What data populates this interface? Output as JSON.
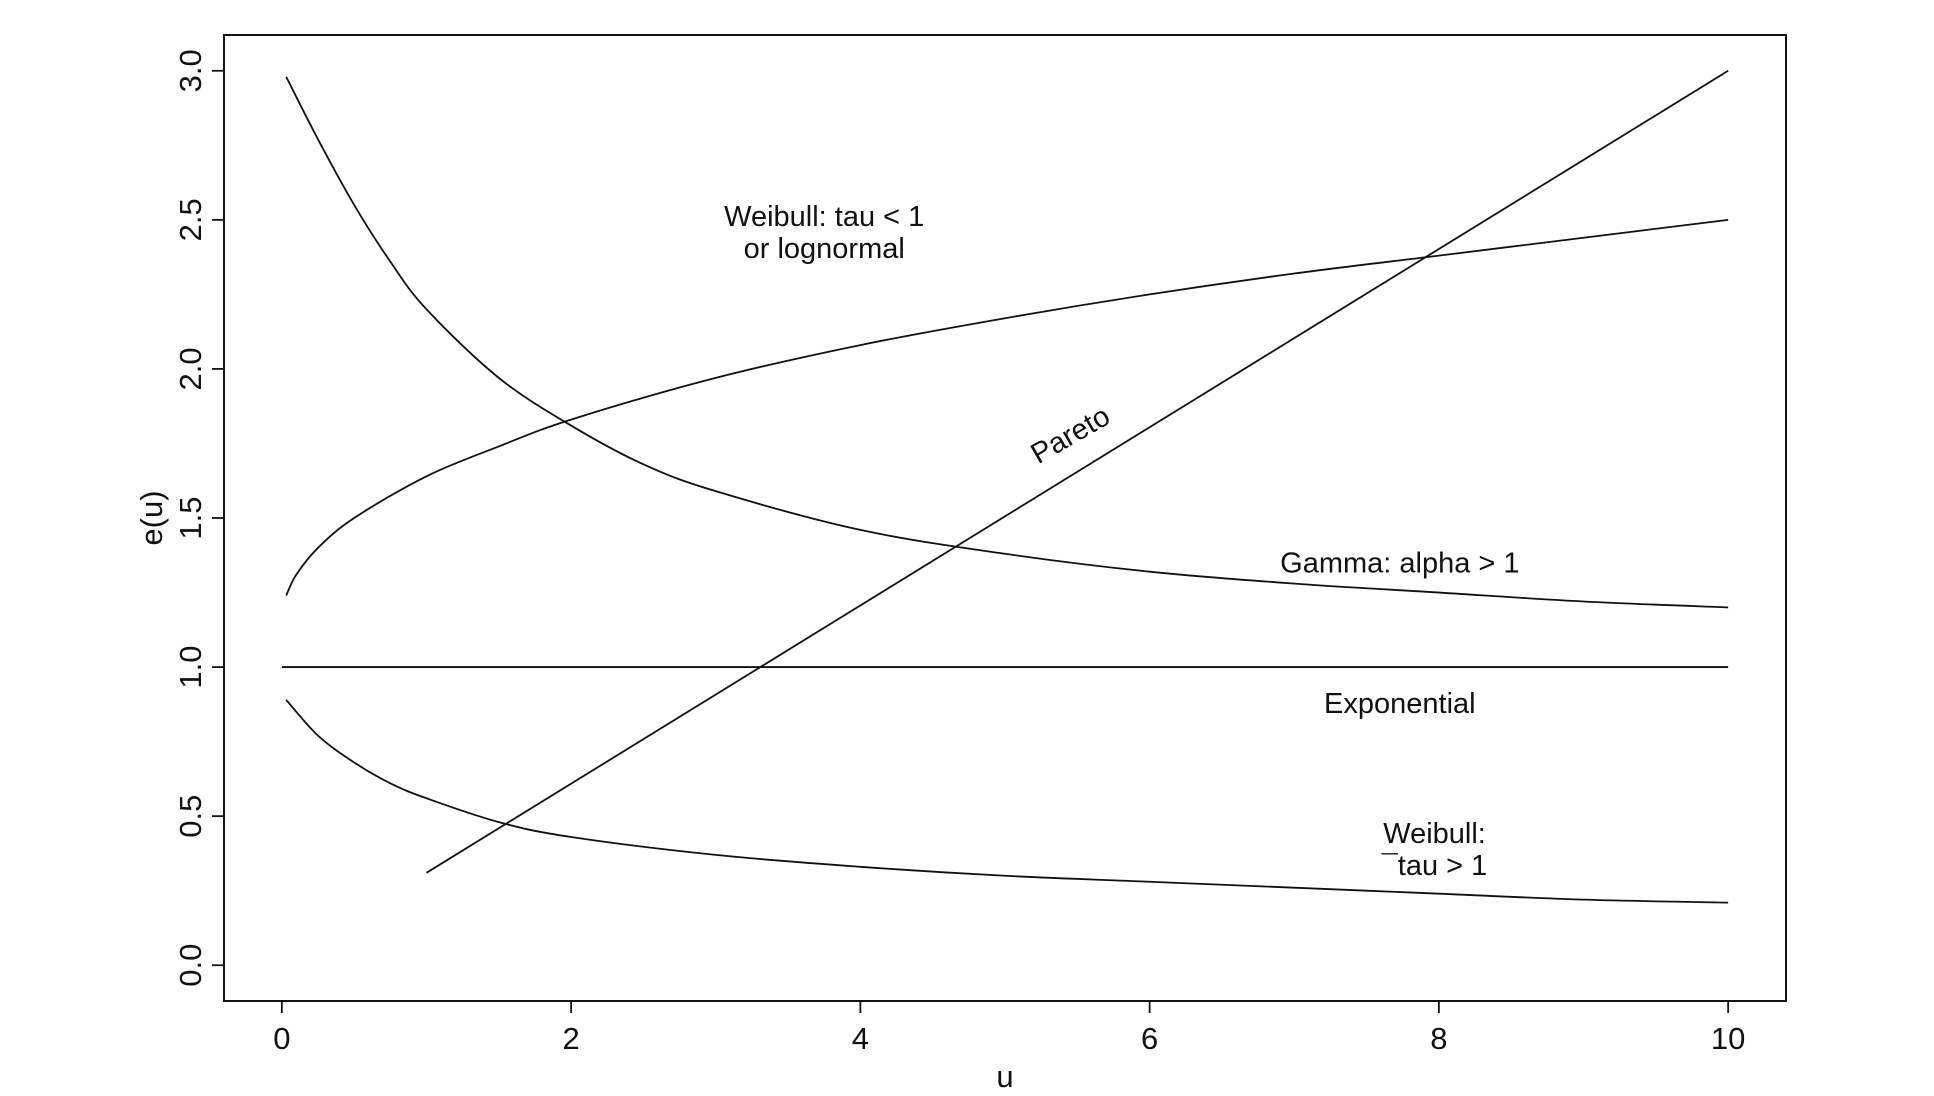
{
  "chart_data": {
    "type": "line",
    "title": "",
    "xlabel": "u",
    "ylabel": "e(u)",
    "xlim": [
      -0.4,
      10.4
    ],
    "ylim": [
      -0.12,
      3.12
    ],
    "xticks": [
      0,
      2,
      4,
      6,
      8,
      10
    ],
    "xtick_labels": [
      "0",
      "2",
      "4",
      "6",
      "8",
      "10"
    ],
    "yticks": [
      0,
      0.5,
      1,
      1.5,
      2,
      2.5,
      3
    ],
    "ytick_labels": [
      "0.0",
      "0.5",
      "1.0",
      "1.5",
      "2.0",
      "2.5",
      "3.0"
    ],
    "grid": false,
    "legend": "none",
    "series": [
      {
        "name": "Pareto",
        "x": [
          1,
          10
        ],
        "y": [
          0.31,
          3.0
        ]
      },
      {
        "name": "Weibull: tau < 1 or lognormal",
        "x": [
          0.03,
          0.1,
          0.25,
          0.5,
          1,
          1.5,
          2,
          3,
          4,
          5,
          6,
          7,
          8,
          9,
          10
        ],
        "y": [
          1.24,
          1.31,
          1.4,
          1.5,
          1.64,
          1.74,
          1.83,
          1.97,
          2.08,
          2.17,
          2.25,
          2.32,
          2.38,
          2.44,
          2.5
        ]
      },
      {
        "name": "Gamma: alpha > 1",
        "x": [
          0.03,
          0.25,
          0.5,
          0.75,
          1,
          1.5,
          2,
          2.5,
          3,
          4,
          5,
          6,
          7,
          8,
          9,
          10
        ],
        "y": [
          2.98,
          2.77,
          2.55,
          2.36,
          2.2,
          1.97,
          1.81,
          1.68,
          1.59,
          1.46,
          1.38,
          1.32,
          1.28,
          1.25,
          1.22,
          1.2
        ]
      },
      {
        "name": "Exponential",
        "x": [
          0,
          10
        ],
        "y": [
          1.0,
          1.0
        ]
      },
      {
        "name": "Weibull: tau > 1",
        "x": [
          0.03,
          0.25,
          0.5,
          0.75,
          1,
          1.5,
          2,
          3,
          4,
          5,
          6,
          7,
          8,
          9,
          10
        ],
        "y": [
          0.89,
          0.77,
          0.68,
          0.61,
          0.56,
          0.48,
          0.43,
          0.37,
          0.33,
          0.3,
          0.28,
          0.26,
          0.24,
          0.22,
          0.21
        ]
      }
    ],
    "annotations": [
      {
        "id": "weibull-lt-1",
        "lines": [
          "Weibull: tau < 1",
          "or lognormal"
        ],
        "x": 3.75,
        "y": 2.46
      },
      {
        "id": "pareto",
        "lines": [
          "Pareto"
        ],
        "x": 5.45,
        "y": 1.78,
        "rotation_deg": -30
      },
      {
        "id": "gamma",
        "lines": [
          "Gamma: alpha > 1"
        ],
        "x": 7.73,
        "y": 1.35
      },
      {
        "id": "exponential",
        "lines": [
          "Exponential"
        ],
        "x": 7.73,
        "y": 0.88
      },
      {
        "id": "weibull-gt-1",
        "lines": [
          "Weibull:",
          "¯tau > 1"
        ],
        "x": 7.97,
        "y": 0.39
      }
    ]
  }
}
